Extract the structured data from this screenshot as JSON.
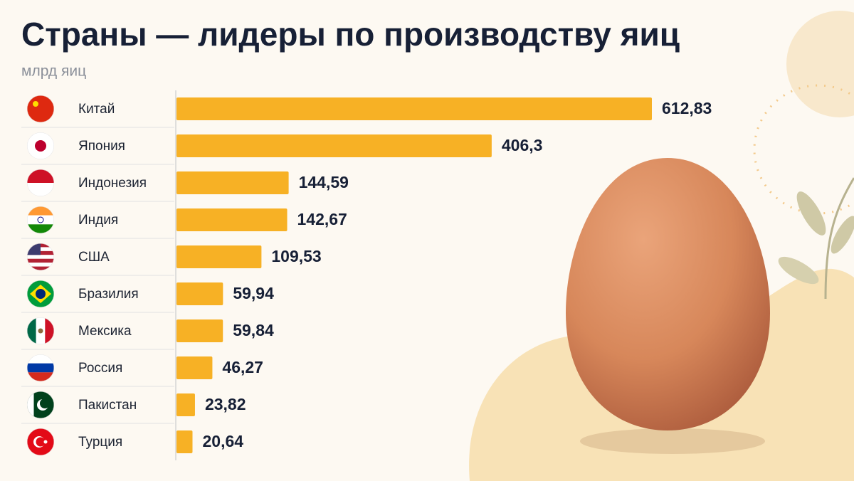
{
  "chart_data": {
    "type": "bar",
    "orientation": "horizontal",
    "title": "Страны — лидеры по производству яиц",
    "subtitle": "млрд яиц",
    "categories": [
      "Китай",
      "Япония",
      "Индонезия",
      "Индия",
      "США",
      "Бразилия",
      "Мексика",
      "Россия",
      "Пакистан",
      "Турция"
    ],
    "values": [
      612.83,
      406.3,
      144.59,
      142.67,
      109.53,
      59.94,
      59.84,
      46.27,
      23.82,
      20.64
    ],
    "value_labels": [
      "612,83",
      "406,3",
      "144,59",
      "142,67",
      "109,53",
      "59,94",
      "59,84",
      "46,27",
      "23,82",
      "20,64"
    ],
    "color": "#f7b125"
  }
}
